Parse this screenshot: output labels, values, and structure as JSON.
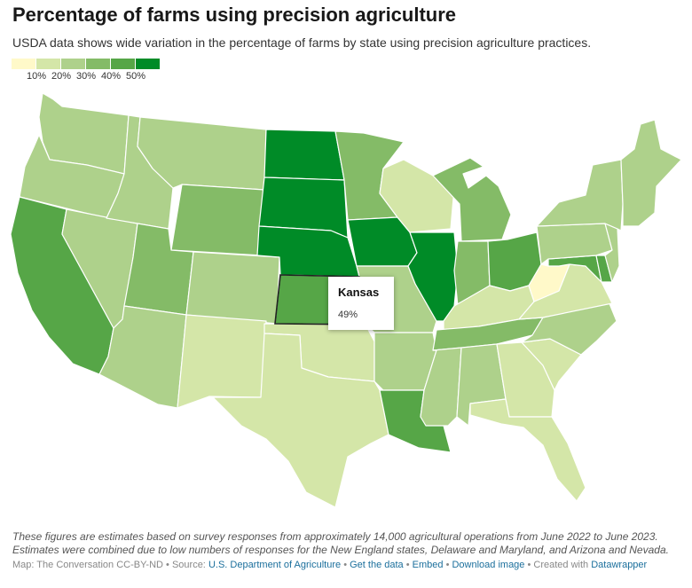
{
  "title": "Percentage of farms using precision agriculture",
  "subtitle": "USDA data shows wide variation in the percentage of farms by state using precision agriculture practices.",
  "legend": {
    "labels": [
      "10%",
      "20%",
      "30%",
      "40%",
      "50%"
    ],
    "colors": [
      "#fff9c9",
      "#d4e6a8",
      "#aed18b",
      "#84bb67",
      "#56a647",
      "#008b27"
    ]
  },
  "tooltip": {
    "state": "Kansas",
    "value": "49%"
  },
  "notes": [
    "These figures are estimates based on survey responses from approximately 14,000 agricultural operations from June 2022 to June 2023.",
    "Estimates were combined due to low numbers of responses for the New England states, Delaware and Maryland, and Arizona and Nevada."
  ],
  "footer": {
    "map_credit": "Map: The Conversation CC-BY-ND",
    "source_prefix": "Source:",
    "source_link": "U.S. Department of Agriculture",
    "get_data": "Get the data",
    "embed": "Embed",
    "download": "Download image",
    "created_prefix": "Created with",
    "created_link": "Datawrapper",
    "sep": "•"
  },
  "states": [
    {
      "id": "WA",
      "color": "#aed18b"
    },
    {
      "id": "OR",
      "color": "#aed18b"
    },
    {
      "id": "CA",
      "color": "#56a647"
    },
    {
      "id": "NV",
      "color": "#aed18b"
    },
    {
      "id": "ID",
      "color": "#aed18b"
    },
    {
      "id": "MT",
      "color": "#aed18b"
    },
    {
      "id": "WY",
      "color": "#84bb67"
    },
    {
      "id": "UT",
      "color": "#84bb67"
    },
    {
      "id": "AZ",
      "color": "#aed18b"
    },
    {
      "id": "CO",
      "color": "#aed18b"
    },
    {
      "id": "NM",
      "color": "#d4e6a8"
    },
    {
      "id": "ND",
      "color": "#008b27"
    },
    {
      "id": "SD",
      "color": "#008b27"
    },
    {
      "id": "NE",
      "color": "#008b27"
    },
    {
      "id": "KS",
      "color": "#56a647"
    },
    {
      "id": "OK",
      "color": "#d4e6a8"
    },
    {
      "id": "TX",
      "color": "#d4e6a8"
    },
    {
      "id": "MN",
      "color": "#84bb67"
    },
    {
      "id": "IA",
      "color": "#008b27"
    },
    {
      "id": "MO",
      "color": "#aed18b"
    },
    {
      "id": "AR",
      "color": "#aed18b"
    },
    {
      "id": "LA",
      "color": "#56a647"
    },
    {
      "id": "WI",
      "color": "#d4e6a8"
    },
    {
      "id": "IL",
      "color": "#008b27"
    },
    {
      "id": "MI",
      "color": "#84bb67"
    },
    {
      "id": "IN",
      "color": "#84bb67"
    },
    {
      "id": "OH",
      "color": "#56a647"
    },
    {
      "id": "KY",
      "color": "#d4e6a8"
    },
    {
      "id": "TN",
      "color": "#84bb67"
    },
    {
      "id": "MS",
      "color": "#aed18b"
    },
    {
      "id": "AL",
      "color": "#aed18b"
    },
    {
      "id": "GA",
      "color": "#d4e6a8"
    },
    {
      "id": "FL",
      "color": "#d4e6a8"
    },
    {
      "id": "SC",
      "color": "#d4e6a8"
    },
    {
      "id": "NC",
      "color": "#aed18b"
    },
    {
      "id": "VA",
      "color": "#d4e6a8"
    },
    {
      "id": "WV",
      "color": "#fff9c9"
    },
    {
      "id": "PA",
      "color": "#aed18b"
    },
    {
      "id": "NY",
      "color": "#aed18b"
    },
    {
      "id": "NJ",
      "color": "#aed18b"
    },
    {
      "id": "MD",
      "color": "#56a647"
    },
    {
      "id": "DE",
      "color": "#56a647"
    },
    {
      "id": "NE-REGION",
      "color": "#aed18b"
    }
  ]
}
